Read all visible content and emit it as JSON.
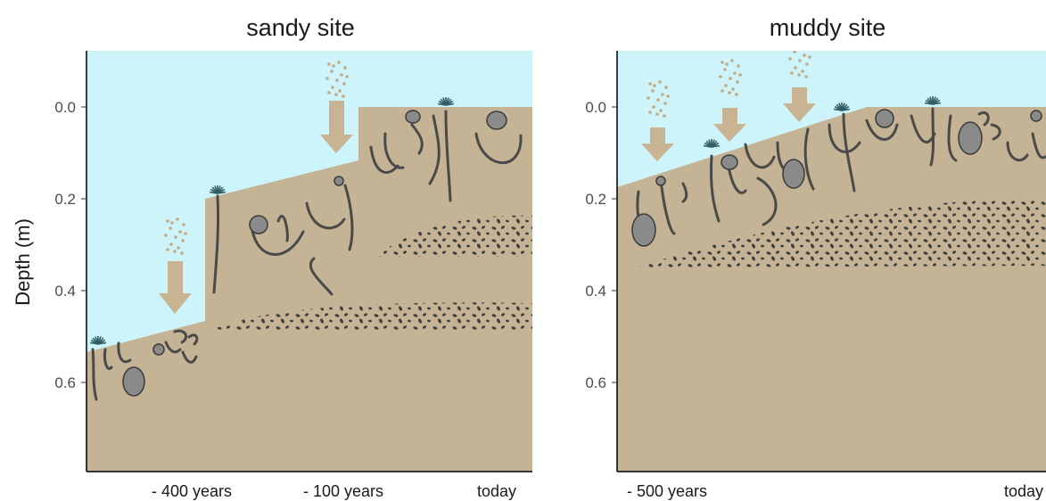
{
  "colors": {
    "water": "#cdf4fb",
    "sediment": "#c4b394",
    "arrow": "#c8b392",
    "particles": "#c3aa84",
    "axis": "#000000",
    "organism": "#4a4a4a"
  },
  "y_axis": {
    "label": "Depth (m)",
    "ticks": [
      "0.0",
      "0.2",
      "0.4",
      "0.6"
    ]
  },
  "panels": [
    {
      "title": "sandy site",
      "x_labels": [
        "- 400 years",
        "- 100 years",
        "today"
      ]
    },
    {
      "title": "muddy site",
      "x_labels": [
        "- 500 years",
        "today"
      ]
    }
  ]
}
